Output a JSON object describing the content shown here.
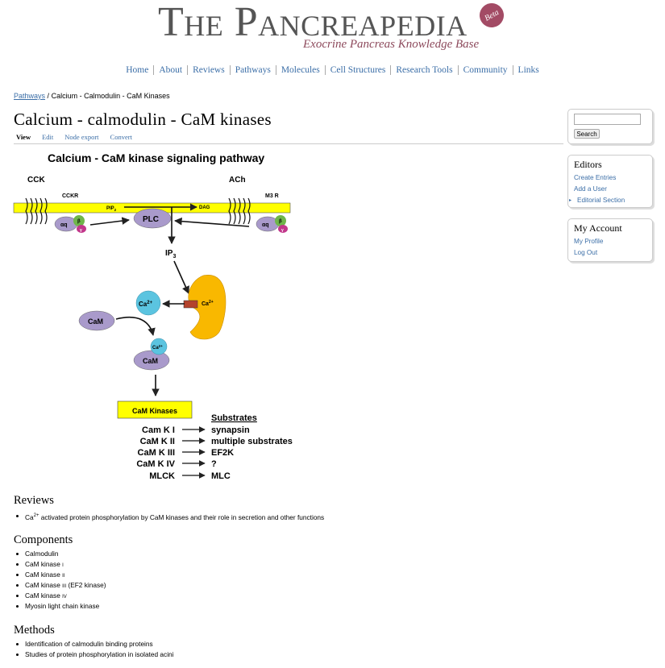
{
  "header": {
    "logo_title": "The Pancreapedia",
    "logo_subtitle": "Exocrine Pancreas Knowledge Base",
    "beta_badge": "Beta"
  },
  "nav": [
    "Home",
    "About",
    "Reviews",
    "Pathways",
    "Molecules",
    "Cell Structures",
    "Research Tools",
    "Community",
    "Links"
  ],
  "breadcrumb": {
    "link": "Pathways",
    "separator": "/",
    "current": "Calcium - Calmodulin - CaM Kinases"
  },
  "page_title": "Calcium - calmodulin - CaM kinases",
  "tabs": [
    {
      "label": "View",
      "active": true
    },
    {
      "label": "Edit",
      "active": false
    },
    {
      "label": "Node export",
      "active": false
    },
    {
      "label": "Convert",
      "active": false
    }
  ],
  "diagram": {
    "title": "Calcium - CaM kinase signaling pathway",
    "cck": "CCK",
    "cckr": "CCKR",
    "ach": "ACh",
    "m3r": "M3 R",
    "pip2": "PIP",
    "pip2_sub": "2",
    "dag": "DAG",
    "plc": "PLC",
    "aq": "αq",
    "beta": "β",
    "gamma": "γ",
    "ip3": "IP",
    "ip3_sub": "3",
    "ca": "Ca",
    "ca_sup": "2+",
    "cam": "CaM",
    "cam_kinases": "CaM Kinases",
    "substrates_header": "Substrates",
    "kinases": [
      "Cam K I",
      "CaM K II",
      "CaM K III",
      "CaM K IV",
      "MLCK"
    ],
    "substrates": [
      "synapsin",
      "multiple substrates",
      "EF2K",
      "?",
      "MLC"
    ],
    "colors": {
      "membrane": "#ffff00",
      "purple": "#a99acb",
      "green": "#6fb64a",
      "magenta": "#c2378b",
      "cyan": "#5bc4e0",
      "orange": "#f9b800",
      "kinase_box": "#ffff00"
    }
  },
  "sections": {
    "reviews": {
      "title": "Reviews",
      "items": [
        {
          "pre": "Ca",
          "sup": "2+",
          "post": " activated protein phosphorylation by CaM kinases and their role in secretion and other functions"
        }
      ]
    },
    "components": {
      "title": "Components",
      "items": [
        {
          "main": "Calmodulin",
          "small": "",
          "tail": ""
        },
        {
          "main": "CaM kinase ",
          "small": "I",
          "tail": ""
        },
        {
          "main": "CaM kinase ",
          "small": "II",
          "tail": ""
        },
        {
          "main": "CaM kinase ",
          "small": "III",
          "tail": " (EF2 kinase)"
        },
        {
          "main": "CaM kinase ",
          "small": "IV",
          "tail": ""
        },
        {
          "main": "Myosin light chain kinase",
          "small": "",
          "tail": ""
        }
      ]
    },
    "methods": {
      "title": "Methods",
      "items": [
        "Identification of calmodulin binding proteins",
        "Studies of protein phosphorylation in isolated acini"
      ]
    }
  },
  "sidebar": {
    "search_button": "Search",
    "search_value": "",
    "editors": {
      "title": "Editors",
      "links": [
        "Create Entries",
        "Add a User",
        "Editorial Section"
      ]
    },
    "account": {
      "title": "My Account",
      "links": [
        "My Profile",
        "Log Out"
      ]
    }
  }
}
